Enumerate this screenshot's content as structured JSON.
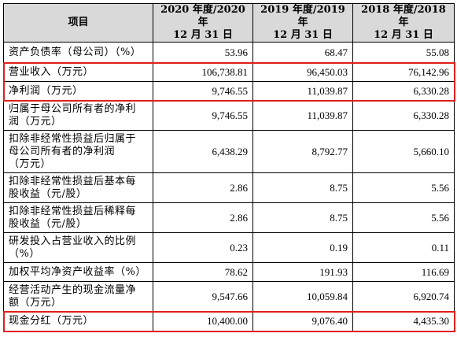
{
  "header": {
    "item": "项目",
    "col1": [
      "2020 年度/2020 年",
      "12 月 31 日"
    ],
    "col2": [
      "2019 年度/2019 年",
      "12 月 31 日"
    ],
    "col3": [
      "2018 年度/2018 年",
      "12 月 31 日"
    ]
  },
  "rows": [
    {
      "label": [
        "资产负债率（母公司）（%）"
      ],
      "v1": "53.96",
      "v2": "68.47",
      "v3": "55.08",
      "highlight": false
    },
    {
      "label": [
        "营业收入（万元）"
      ],
      "v1": "106,738.81",
      "v2": "96,450.03",
      "v3": "76,142.96",
      "highlight": true
    },
    {
      "label": [
        "净利润（万元）"
      ],
      "v1": "9,746.55",
      "v2": "11,039.87",
      "v3": "6,330.28",
      "highlight": true
    },
    {
      "label": [
        "归属于母公司所有者的净利",
        "润（万元）"
      ],
      "v1": "9,746.55",
      "v2": "11,039.87",
      "v3": "6,330.28",
      "highlight": false
    },
    {
      "label": [
        "扣除非经常性损益后归属于",
        "母公司所有者的净利润",
        "（万元）"
      ],
      "v1": "6,438.29",
      "v2": "8,792.77",
      "v3": "5,660.10",
      "highlight": false
    },
    {
      "label": [
        "扣除非经常性损益后基本每",
        "股收益（元/股）"
      ],
      "v1": "2.86",
      "v2": "8.75",
      "v3": "5.56",
      "highlight": false
    },
    {
      "label": [
        "扣除非经常性损益后稀释每",
        "股收益（元/股）"
      ],
      "v1": "2.86",
      "v2": "8.75",
      "v3": "5.56",
      "highlight": false
    },
    {
      "label": [
        "研发投入占营业收入的比例",
        "（%）"
      ],
      "v1": "0.23",
      "v2": "0.19",
      "v3": "0.11",
      "highlight": false
    },
    {
      "label": [
        "加权平均净资产收益率（%）"
      ],
      "v1": "78.62",
      "v2": "191.93",
      "v3": "116.69",
      "highlight": false
    },
    {
      "label": [
        "经营活动产生的现金流量净",
        "额（万元）"
      ],
      "v1": "9,547.66",
      "v2": "10,059.84",
      "v3": "6,920.74",
      "highlight": false
    },
    {
      "label": [
        "现金分红（万元）"
      ],
      "v1": "10,400.00",
      "v2": "9,076.40",
      "v3": "4,435.30",
      "highlight": true
    }
  ],
  "accent_color": "#e0201b"
}
